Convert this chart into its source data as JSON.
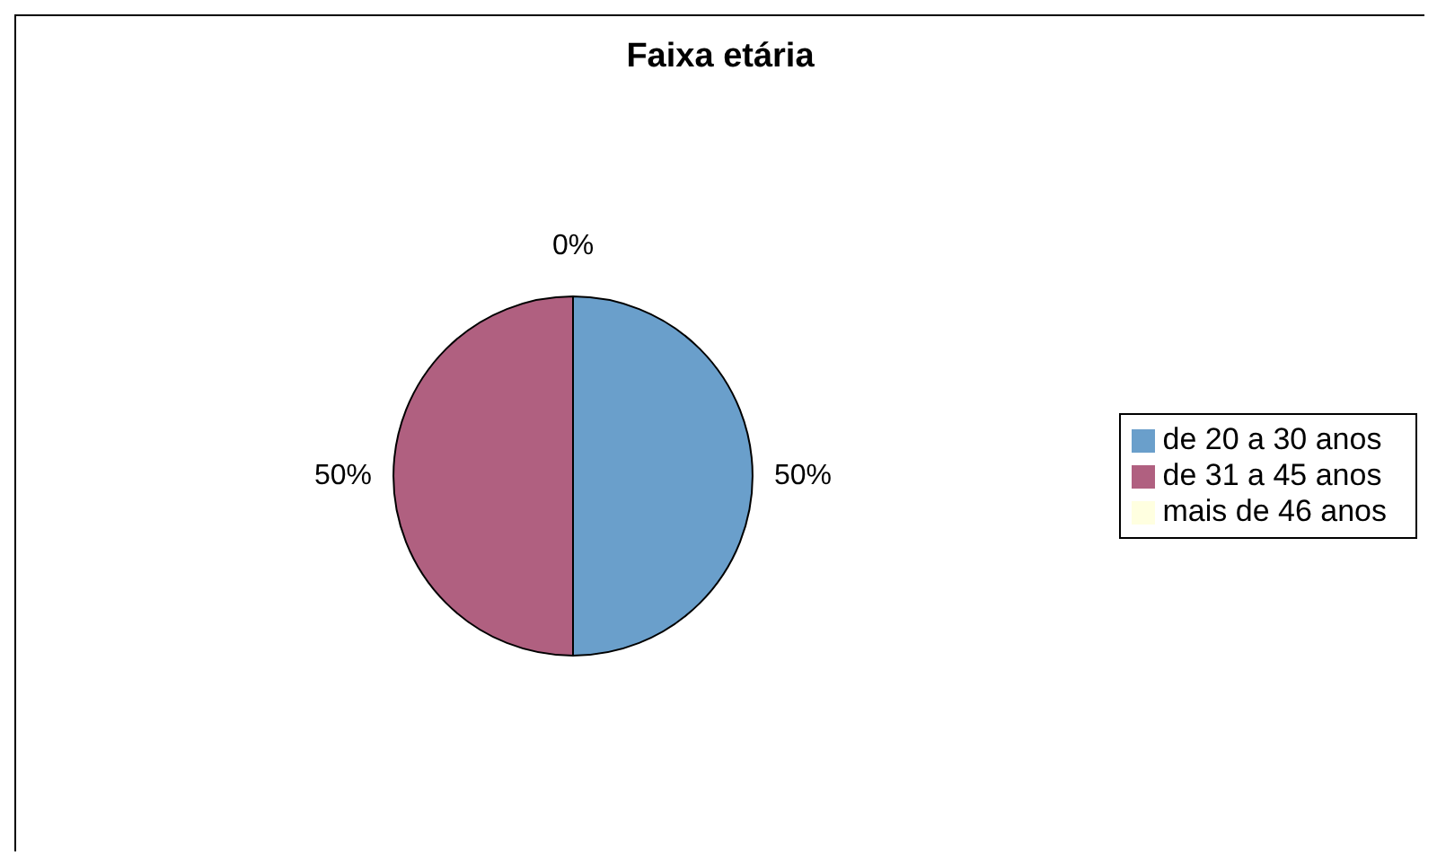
{
  "chart_data": {
    "type": "pie",
    "title": "Faixa etária",
    "categories": [
      "de 20 a 30 anos",
      "de 31 a 45 anos",
      "mais de 46 anos"
    ],
    "values": [
      50,
      50,
      0
    ],
    "colors": [
      "#6a9fcb",
      "#b06080",
      "#ffffe0"
    ],
    "value_labels": [
      "50%",
      "50%",
      "0%"
    ],
    "legend": "right"
  }
}
